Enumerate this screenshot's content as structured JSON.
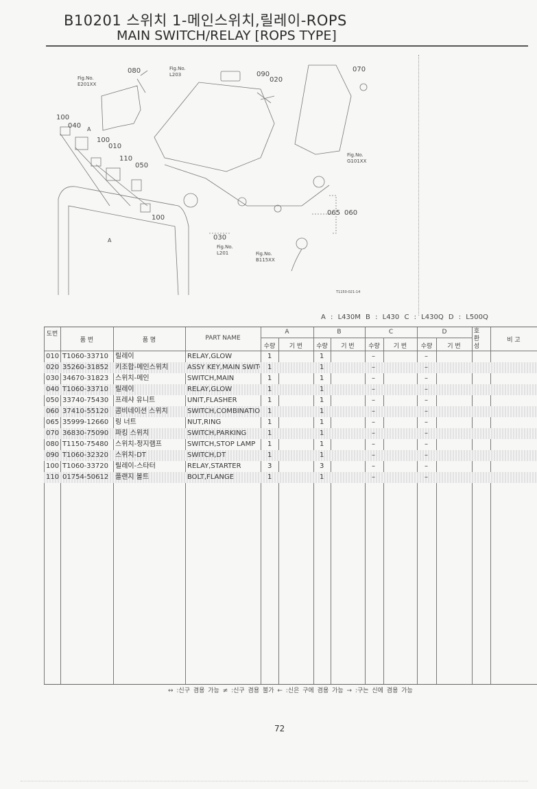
{
  "header": {
    "title_kr": "B10201 스위치 1-메인스위치,릴레이-ROPS",
    "title_en": "MAIN SWITCH/RELAY [ROPS TYPE]"
  },
  "diagram": {
    "callouts": [
      "080",
      "090",
      "020",
      "070",
      "100",
      "040",
      "100",
      "010",
      "110",
      "050",
      "100",
      "065",
      "060",
      "030"
    ],
    "ref_marks": [
      "A",
      "A"
    ],
    "fig_refs": [
      {
        "label": "Fig.No.",
        "code": "E201XX"
      },
      {
        "label": "Fig.No.",
        "code": "L203"
      },
      {
        "label": "Fig.No.",
        "code": "G101XX"
      },
      {
        "label": "Fig.No.",
        "code": "L201"
      },
      {
        "label": "Fig.No.",
        "code": "B115XX"
      }
    ],
    "drawing_code": "T1150-021-14"
  },
  "models_legend": "A : L430M   B : L430   C : L430Q   D : L500Q",
  "table": {
    "headers": {
      "ref_no": "도번",
      "part_no": "품  번",
      "name_kr": "품       명",
      "part_name": "PART  NAME",
      "groups": [
        "A",
        "B",
        "C",
        "D"
      ],
      "qty": "수량",
      "serial": "기 번",
      "interchange": "호환성",
      "remarks": "비   고"
    },
    "rows": [
      {
        "ref": "010",
        "part": "T1060-33710",
        "kr": "릴레이",
        "en": "RELAY,GLOW",
        "a": "1",
        "b": "1",
        "c": "–",
        "d": "–"
      },
      {
        "ref": "020",
        "part": "35260-31852",
        "kr": "키조합-메인스위치",
        "en": "ASSY KEY,MAIN SWITCH",
        "a": "1",
        "b": "1",
        "c": "–",
        "d": "–"
      },
      {
        "ref": "030",
        "part": "34670-31823",
        "kr": "스위치-메인",
        "en": "SWITCH,MAIN",
        "a": "1",
        "b": "1",
        "c": "–",
        "d": "–"
      },
      {
        "ref": "040",
        "part": "T1060-33710",
        "kr": "릴레이",
        "en": "RELAY,GLOW",
        "a": "1",
        "b": "1",
        "c": "–",
        "d": "–"
      },
      {
        "ref": "050",
        "part": "33740-75430",
        "kr": "프레샤 유니트",
        "en": "UNIT,FLASHER",
        "a": "1",
        "b": "1",
        "c": "–",
        "d": "–"
      },
      {
        "ref": "060",
        "part": "37410-55120",
        "kr": "콤비네이션 스위치",
        "en": "SWITCH,COMBINATION",
        "a": "1",
        "b": "1",
        "c": "–",
        "d": "–"
      },
      {
        "ref": "065",
        "part": "35999-12660",
        "kr": "링 너트",
        "en": "NUT,RING",
        "a": "1",
        "b": "1",
        "c": "–",
        "d": "–"
      },
      {
        "ref": "070",
        "part": "36830-75090",
        "kr": "파킹 스위치",
        "en": "SWITCH,PARKING",
        "a": "1",
        "b": "1",
        "c": "–",
        "d": "–"
      },
      {
        "ref": "080",
        "part": "T1150-75480",
        "kr": "스위치-정지램프",
        "en": "SWITCH,STOP LAMP",
        "a": "1",
        "b": "1",
        "c": "–",
        "d": "–"
      },
      {
        "ref": "090",
        "part": "T1060-32320",
        "kr": "스위치-DT",
        "en": "SWITCH,DT",
        "a": "1",
        "b": "1",
        "c": "–",
        "d": "–"
      },
      {
        "ref": "100",
        "part": "T1060-33720",
        "kr": "릴레이-스타터",
        "en": "RELAY,STARTER",
        "a": "3",
        "b": "3",
        "c": "–",
        "d": "–"
      },
      {
        "ref": "110",
        "part": "01754-50612",
        "kr": "플랜지 볼트",
        "en": "BOLT,FLANGE",
        "a": "1",
        "b": "1",
        "c": "–",
        "d": "–"
      }
    ]
  },
  "footer": {
    "legend": "↔ :신구 겸용 가능    ≠ :신구 겸용 불가    ← :신은 구에 겸용 가능    → :구는 신에 겸용 가능",
    "page_number": "72"
  }
}
